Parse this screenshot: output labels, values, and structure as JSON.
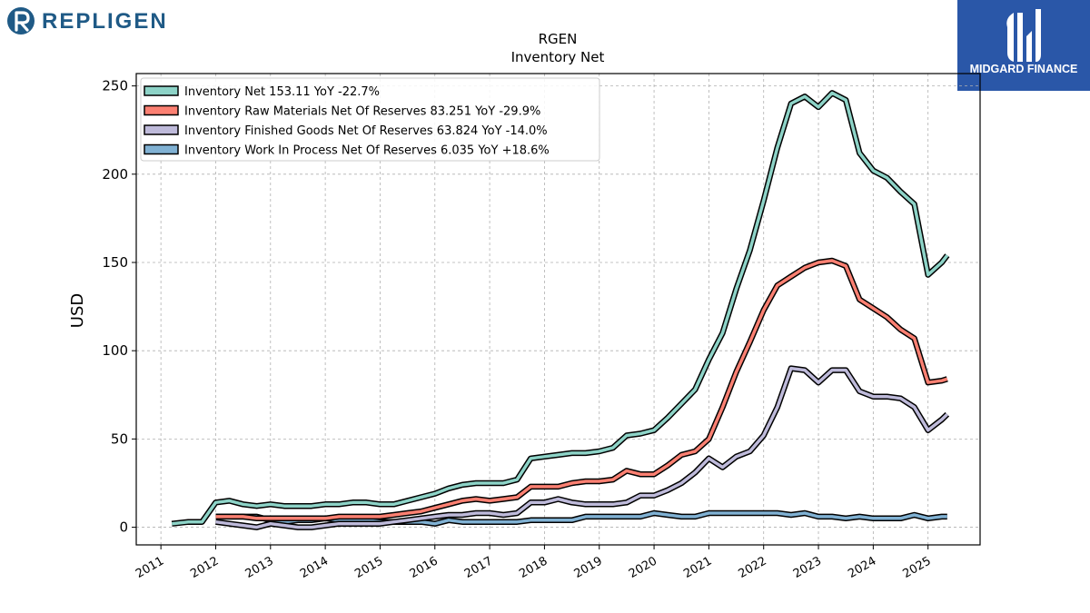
{
  "header": {
    "company_logo_text": "REPLIGEN",
    "partner_logo_text": "MIDGARD FINANCE"
  },
  "colors": {
    "inventory_net": "#8dd3c7",
    "raw_materials": "#fb8072",
    "finished_goods": "#bebada",
    "work_in_process": "#80b1d3",
    "repligen_blue": "#1f5a86",
    "midgard_bg": "#2a57a8"
  },
  "chart_data": {
    "type": "line",
    "title": "RGEN",
    "subtitle": "Inventory Net",
    "xlabel": "",
    "ylabel": "USD",
    "xlim": [
      2010.55,
      2025.95
    ],
    "ylim": [
      -10,
      257
    ],
    "yticks": [
      0,
      50,
      100,
      150,
      200,
      250
    ],
    "xticks": [
      "2011",
      "2012",
      "2013",
      "2014",
      "2015",
      "2016",
      "2017",
      "2018",
      "2019",
      "2020",
      "2021",
      "2022",
      "2023",
      "2024",
      "2025"
    ],
    "grid": true,
    "legend_position": "top-left",
    "series": [
      {
        "name": "Inventory Net",
        "legend": "Inventory Net  153.11 YoY -22.7%",
        "color": "#8dd3c7",
        "x": [
          2011.2,
          2011.5,
          2011.75,
          2012.0,
          2012.25,
          2012.5,
          2012.75,
          2013.0,
          2013.25,
          2013.5,
          2013.75,
          2014.0,
          2014.25,
          2014.5,
          2014.75,
          2015.0,
          2015.25,
          2015.5,
          2015.75,
          2016.0,
          2016.25,
          2016.5,
          2016.75,
          2017.0,
          2017.25,
          2017.5,
          2017.75,
          2018.0,
          2018.25,
          2018.5,
          2018.75,
          2019.0,
          2019.25,
          2019.5,
          2019.75,
          2020.0,
          2020.25,
          2020.5,
          2020.75,
          2021.0,
          2021.25,
          2021.5,
          2021.75,
          2022.0,
          2022.25,
          2022.5,
          2022.75,
          2023.0,
          2023.25,
          2023.5,
          2023.75,
          2024.0,
          2024.25,
          2024.5,
          2024.75,
          2025.0,
          2025.25,
          2025.35
        ],
        "values": [
          2,
          3,
          3,
          14,
          15,
          13,
          12,
          13,
          12,
          12,
          12,
          13,
          13,
          14,
          14,
          13,
          13,
          15,
          17,
          19,
          22,
          24,
          25,
          25,
          25,
          27,
          39,
          40,
          41,
          42,
          42,
          43,
          45,
          52,
          53,
          55,
          62,
          70,
          78,
          95,
          110,
          135,
          157,
          185,
          215,
          240,
          244,
          238,
          246,
          242,
          212,
          202,
          198,
          190,
          183,
          143,
          150,
          154
        ]
      },
      {
        "name": "Inventory Raw Materials Net Of Reserves",
        "legend": "Inventory Raw Materials Net Of Reserves  83.251 YoY -29.9%",
        "color": "#fb8072",
        "x": [
          2012.0,
          2012.25,
          2012.5,
          2012.75,
          2013.0,
          2013.25,
          2013.5,
          2013.75,
          2014.0,
          2014.25,
          2014.5,
          2014.75,
          2015.0,
          2015.25,
          2015.5,
          2015.75,
          2016.0,
          2016.25,
          2016.5,
          2016.75,
          2017.0,
          2017.25,
          2017.5,
          2017.75,
          2018.0,
          2018.25,
          2018.5,
          2018.75,
          2019.0,
          2019.25,
          2019.5,
          2019.75,
          2020.0,
          2020.25,
          2020.5,
          2020.75,
          2021.0,
          2021.25,
          2021.5,
          2021.75,
          2022.0,
          2022.25,
          2022.5,
          2022.75,
          2023.0,
          2023.25,
          2023.5,
          2023.75,
          2024.0,
          2024.25,
          2024.5,
          2024.75,
          2025.0,
          2025.25,
          2025.35
        ],
        "values": [
          6,
          6,
          6,
          5,
          5,
          5,
          5,
          5,
          5,
          6,
          6,
          6,
          6,
          7,
          8,
          9,
          11,
          13,
          15,
          16,
          15,
          16,
          17,
          23,
          23,
          23,
          25,
          26,
          26,
          27,
          32,
          30,
          30,
          35,
          41,
          43,
          50,
          68,
          88,
          105,
          123,
          137,
          142,
          147,
          150,
          151,
          148,
          129,
          124,
          119,
          112,
          107,
          82,
          83,
          84
        ]
      },
      {
        "name": "Inventory Finished Goods Net Of Reserves",
        "legend": "Inventory Finished Goods Net Of Reserves  63.824 YoY -14.0%",
        "color": "#bebada",
        "x": [
          2012.0,
          2012.25,
          2012.5,
          2012.75,
          2013.0,
          2013.25,
          2013.5,
          2013.75,
          2014.0,
          2014.25,
          2014.5,
          2014.75,
          2015.0,
          2015.25,
          2015.5,
          2015.75,
          2016.0,
          2016.25,
          2016.5,
          2016.75,
          2017.0,
          2017.25,
          2017.5,
          2017.75,
          2018.0,
          2018.25,
          2018.5,
          2018.75,
          2019.0,
          2019.25,
          2019.5,
          2019.75,
          2020.0,
          2020.25,
          2020.5,
          2020.75,
          2021.0,
          2021.25,
          2021.5,
          2021.75,
          2022.0,
          2022.25,
          2022.5,
          2022.75,
          2023.0,
          2023.25,
          2023.5,
          2023.75,
          2024.0,
          2024.25,
          2024.5,
          2024.75,
          2025.0,
          2025.25,
          2025.35
        ],
        "values": [
          3,
          2,
          1,
          0,
          2,
          1,
          0,
          0,
          1,
          2,
          2,
          2,
          2,
          3,
          4,
          5,
          6,
          7,
          7,
          8,
          8,
          7,
          8,
          14,
          14,
          16,
          14,
          13,
          13,
          13,
          14,
          18,
          18,
          21,
          25,
          31,
          39,
          34,
          40,
          43,
          52,
          68,
          90,
          89,
          82,
          89,
          89,
          77,
          74,
          74,
          73,
          68,
          55,
          61,
          64
        ]
      },
      {
        "name": "Inventory Work In Process Net Of Reserves",
        "legend": "Inventory Work In Process Net Of Reserves  6.035 YoY +18.6%",
        "color": "#80b1d3",
        "x": [
          2012.0,
          2012.25,
          2012.5,
          2012.75,
          2013.0,
          2013.25,
          2013.5,
          2013.75,
          2014.0,
          2014.25,
          2014.5,
          2014.75,
          2015.0,
          2015.25,
          2015.5,
          2015.75,
          2016.0,
          2016.25,
          2016.5,
          2016.75,
          2017.0,
          2017.25,
          2017.5,
          2017.75,
          2018.0,
          2018.25,
          2018.5,
          2018.75,
          2019.0,
          2019.25,
          2019.5,
          2019.75,
          2020.0,
          2020.25,
          2020.5,
          2020.75,
          2021.0,
          2021.25,
          2021.5,
          2021.75,
          2022.0,
          2022.25,
          2022.5,
          2022.75,
          2023.0,
          2023.25,
          2023.5,
          2023.75,
          2024.0,
          2024.25,
          2024.5,
          2024.75,
          2025.0,
          2025.25,
          2025.35
        ],
        "values": [
          6,
          6,
          6,
          6,
          4,
          3,
          4,
          4,
          5,
          4,
          4,
          4,
          3,
          3,
          3,
          3,
          2,
          4,
          3,
          3,
          3,
          3,
          3,
          4,
          4,
          4,
          4,
          6,
          6,
          6,
          6,
          6,
          8,
          7,
          6,
          6,
          8,
          8,
          8,
          8,
          8,
          8,
          7,
          8,
          6,
          6,
          5,
          6,
          5,
          5,
          5,
          7,
          5,
          6,
          6
        ]
      }
    ]
  }
}
